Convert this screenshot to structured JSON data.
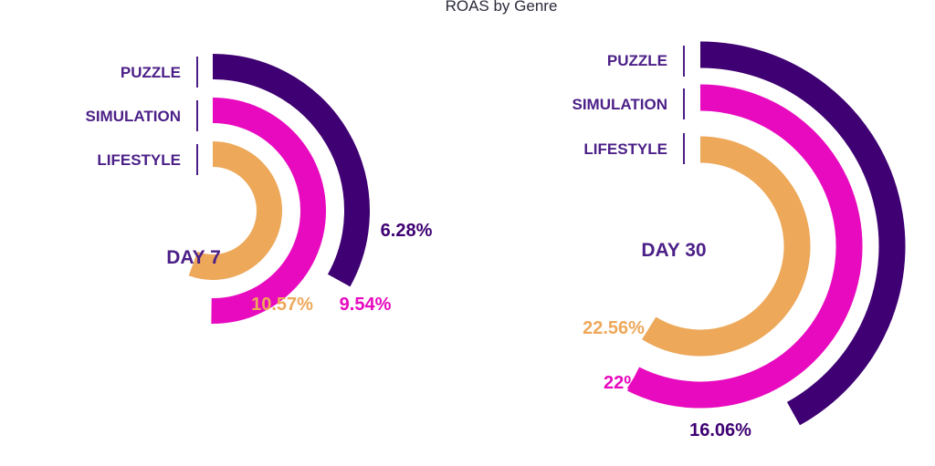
{
  "chart_data": {
    "type": "radial-bar",
    "title": "ROAS by Genre",
    "legend_position": "left of each chart",
    "colors": {
      "PUZZLE": "#3e0072",
      "SIMULATION": "#e80abf",
      "LIFESTYLE": "#eda85a",
      "label_text": "#4b1f87"
    },
    "charts": [
      {
        "label": "DAY 7",
        "series": [
          {
            "name": "PUZZLE",
            "value": 6.28,
            "display": "6.28%"
          },
          {
            "name": "SIMULATION",
            "value": 9.54,
            "display": "9.54%"
          },
          {
            "name": "LIFESTYLE",
            "value": 10.57,
            "display": "10.57%"
          }
        ]
      },
      {
        "label": "DAY 30",
        "series": [
          {
            "name": "PUZZLE",
            "value": 16.06,
            "display": "16.06%"
          },
          {
            "name": "SIMULATION",
            "value": 22,
            "display": "22%"
          },
          {
            "name": "LIFESTYLE",
            "value": 22.56,
            "display": "22.56%"
          }
        ]
      }
    ]
  }
}
